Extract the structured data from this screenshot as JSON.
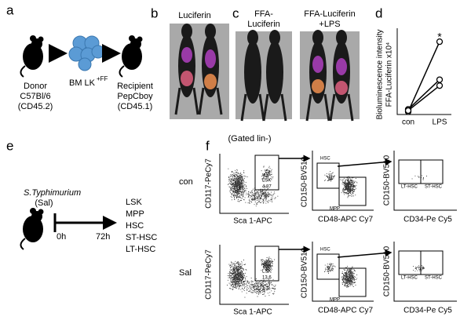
{
  "panels": {
    "a": {
      "label": "a",
      "donor": [
        "Donor",
        "C57Bl/6",
        "(CD45.2)"
      ],
      "cells": "BM LK",
      "cells_sup": "+FF",
      "recipient": [
        "Recipient",
        "PepCboy",
        "(CD45.1)"
      ]
    },
    "b": {
      "label": "b",
      "title": "Luciferin"
    },
    "c": {
      "label": "c",
      "titles": [
        [
          "FFA-",
          "Luciferin"
        ],
        [
          "FFA-Luciferin",
          "+LPS"
        ]
      ]
    },
    "d": {
      "label": "d",
      "chart_data": {
        "type": "paired-dot",
        "ylabel": [
          "Bioluminescence intensity",
          "FFA-Luciferin x10⁴"
        ],
        "categories": [
          "con",
          "LPS"
        ],
        "significance": "*",
        "ylim": [
          0,
          7
        ],
        "series": [
          {
            "values": [
              0.1,
              6.0
            ]
          },
          {
            "values": [
              0.3,
              2.8
            ]
          },
          {
            "values": [
              0.2,
              2.3
            ]
          }
        ]
      }
    },
    "e": {
      "label": "e",
      "infection": "S.Typhimurium",
      "infection_abbr": "(Sal)",
      "times": [
        "0h",
        "72h"
      ],
      "populations": [
        "LSK",
        "MPP",
        "HSC",
        "ST-HSC",
        "LT-HSC"
      ]
    },
    "f": {
      "label": "f",
      "gating": "(Gated lin-)",
      "rows": [
        {
          "label": "con",
          "lsk_value": 4.87
        },
        {
          "label": "Sal",
          "lsk_value": 13.6
        }
      ],
      "axes": {
        "p1y": "CD117-PeCy7",
        "p1x": "Sca 1-APC",
        "p2y": "CD150-BV510",
        "p2x": "CD48-APC Cy7",
        "p3y": "CD150-BV510",
        "p3x": "CD34-Pe Cy5"
      },
      "gates": {
        "lsk": "LSK",
        "hsc": "HSC",
        "mpp": "MPP",
        "lt": "LT-HSC",
        "st": "ST-HSC"
      }
    }
  }
}
